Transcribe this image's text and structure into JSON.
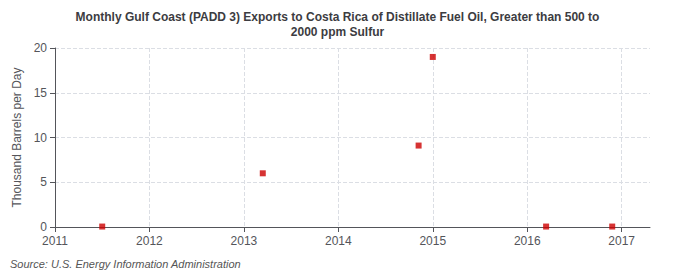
{
  "chart_data": {
    "type": "scatter",
    "title": "Monthly Gulf Coast (PADD 3) Exports to Costa Rica of Distillate Fuel Oil, Greater than 500 to\n2000 ppm Sulfur",
    "ylabel": "Thousand Barrels per Day",
    "source": "Source: U.S. Energy Information Administration",
    "x": [
      2011.5,
      2013.2,
      2014.85,
      2015.0,
      2016.2,
      2016.9
    ],
    "values": [
      0.05,
      6.0,
      9.1,
      19.0,
      0.05,
      0.05
    ],
    "color": "#cc0000",
    "marker": "square",
    "xlim": [
      2011,
      2017.3
    ],
    "ylim": [
      0,
      20
    ],
    "xticks": [
      2011,
      2012,
      2013,
      2014,
      2015,
      2016,
      2017
    ],
    "yticks": [
      0,
      5,
      10,
      15,
      20
    ],
    "grid": true
  }
}
